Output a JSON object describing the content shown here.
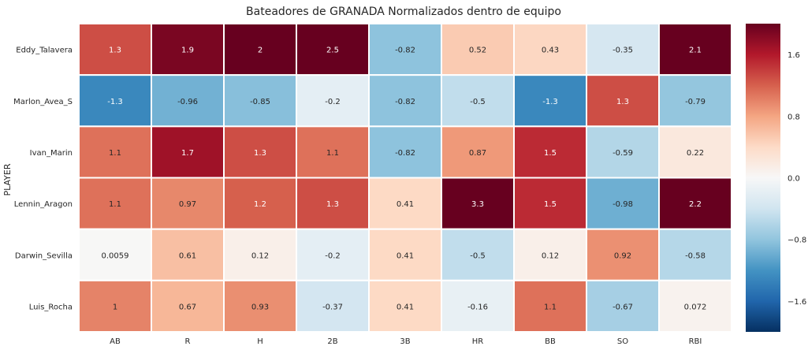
{
  "chart_data": {
    "type": "heatmap",
    "title": "Bateadores de GRANADA Normalizados dentro de equipo",
    "xlabel": "",
    "ylabel": "PLAYER",
    "columns": [
      "AB",
      "R",
      "H",
      "2B",
      "3B",
      "HR",
      "BB",
      "SO",
      "RBI"
    ],
    "rows": [
      "Eddy_Talavera",
      "Marlon_Avea_S",
      "Ivan_Marin",
      "Lennin_Aragon",
      "Darwin_Sevilla",
      "Luis_Rocha"
    ],
    "values": [
      [
        1.3,
        1.9,
        2,
        2.5,
        -0.82,
        0.52,
        0.43,
        -0.35,
        2.1
      ],
      [
        -1.3,
        -0.96,
        -0.85,
        -0.2,
        -0.82,
        -0.5,
        -1.3,
        1.3,
        -0.79
      ],
      [
        1.1,
        1.7,
        1.3,
        1.1,
        -0.82,
        0.87,
        1.5,
        -0.59,
        0.22
      ],
      [
        1.1,
        0.97,
        1.2,
        1.3,
        0.41,
        3.3,
        1.5,
        -0.98,
        2.2
      ],
      [
        0.0059,
        0.61,
        0.12,
        -0.2,
        0.41,
        -0.5,
        0.12,
        0.92,
        -0.58
      ],
      [
        1,
        0.67,
        0.93,
        -0.37,
        0.41,
        -0.16,
        1.1,
        -0.67,
        0.072
      ]
    ],
    "labels": [
      [
        "1.3",
        "1.9",
        "2",
        "2.5",
        "-0.82",
        "0.52",
        "0.43",
        "-0.35",
        "2.1"
      ],
      [
        "-1.3",
        "-0.96",
        "-0.85",
        "-0.2",
        "-0.82",
        "-0.5",
        "-1.3",
        "1.3",
        "-0.79"
      ],
      [
        "1.1",
        "1.7",
        "1.3",
        "1.1",
        "-0.82",
        "0.87",
        "1.5",
        "-0.59",
        "0.22"
      ],
      [
        "1.1",
        "0.97",
        "1.2",
        "1.3",
        "0.41",
        "3.3",
        "1.5",
        "-0.98",
        "2.2"
      ],
      [
        "0.0059",
        "0.61",
        "0.12",
        "-0.2",
        "0.41",
        "-0.5",
        "0.12",
        "0.92",
        "-0.58"
      ],
      [
        "1",
        "0.67",
        "0.93",
        "-0.37",
        "0.41",
        "-0.16",
        "1.1",
        "-0.67",
        "0.072"
      ]
    ],
    "colorscale": {
      "name": "RdBu_r",
      "vmin": -2,
      "vmax": 2,
      "ticks": [
        1.6,
        0.8,
        0.0,
        -0.8,
        -1.6
      ],
      "tick_labels": [
        "1.6",
        "0.8",
        "0.0",
        "−0.8",
        "−1.6"
      ]
    }
  }
}
